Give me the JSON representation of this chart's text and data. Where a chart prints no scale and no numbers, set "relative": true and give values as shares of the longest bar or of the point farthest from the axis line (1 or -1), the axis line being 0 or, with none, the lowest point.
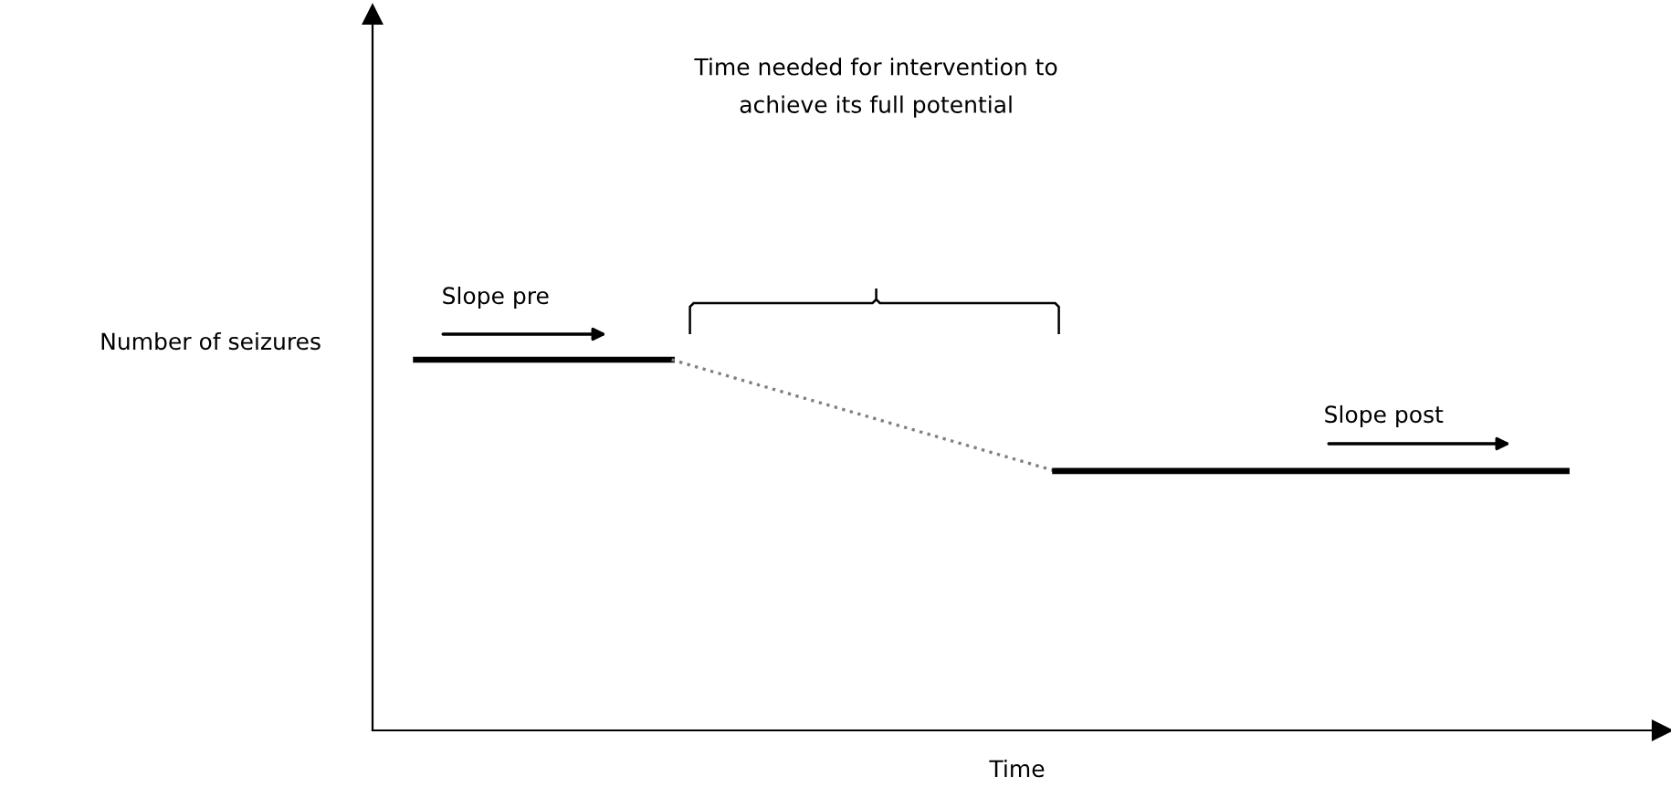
{
  "chart_data": {
    "type": "line",
    "relative": true,
    "xlabel": "Time",
    "ylabel": "Number of seizures",
    "categories": [
      null,
      null,
      null,
      null,
      null,
      null,
      null,
      null,
      null,
      null
    ],
    "series": [
      {
        "color": "#000000",
        "line_style": "solid",
        "values": [
          1,
          1,
          1,
          null,
          null,
          null,
          null,
          null,
          null,
          null
        ]
      },
      {
        "color": "#808080",
        "line_style": "dotted",
        "values": [
          null,
          null,
          1,
          0.9,
          0.8,
          0.7,
          null,
          null,
          null,
          null
        ]
      },
      {
        "color": "#000000",
        "line_style": "solid",
        "values": [
          null,
          null,
          null,
          null,
          null,
          0.7,
          0.7,
          0.7,
          0.7,
          0.7
        ]
      }
    ],
    "annotations": [
      "Slope pre",
      "Slope post",
      "Time needed for intervention to\nachieve its full potential"
    ],
    "grid": false,
    "legend": false,
    "marker": "none"
  }
}
